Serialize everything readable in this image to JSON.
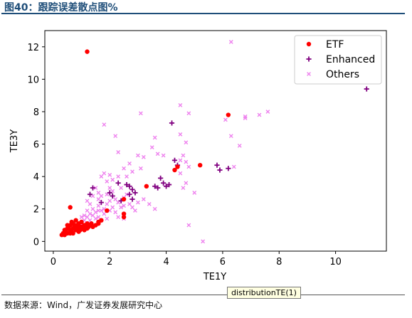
{
  "figure_title": "图40：跟踪误差散点图%",
  "source": "数据来源：Wind，广发证券发展研究中心",
  "tooltip": "distributionTE(1)",
  "colors": {
    "etf": "#ff0000",
    "enhanced": "#800080",
    "others": "#ee82ee",
    "title": "#1f4e79"
  },
  "chart_data": {
    "type": "scatter",
    "xlabel": "TE1Y",
    "ylabel": "TE3Y",
    "xlim": [
      -0.3,
      11.8
    ],
    "ylim": [
      -0.6,
      13.0
    ],
    "xticks": [
      0,
      2,
      4,
      6,
      8,
      10
    ],
    "yticks": [
      0,
      2,
      4,
      6,
      8,
      10,
      12
    ],
    "grid": false,
    "legend_position": "top-right",
    "series": [
      {
        "name": "ETF",
        "marker": "circle",
        "color": "#ff0000",
        "points": [
          [
            1.2,
            11.7
          ],
          [
            6.2,
            7.8
          ],
          [
            5.2,
            4.7
          ],
          [
            4.4,
            4.6
          ],
          [
            4.3,
            4.4
          ],
          [
            3.3,
            3.4
          ],
          [
            2.5,
            2.6
          ],
          [
            0.6,
            2.1
          ],
          [
            1.9,
            1.9
          ],
          [
            2.5,
            1.7
          ],
          [
            2.5,
            1.5
          ],
          [
            1.6,
            1.2
          ],
          [
            0.3,
            0.4
          ],
          [
            0.35,
            0.5
          ],
          [
            0.4,
            0.4
          ],
          [
            0.45,
            0.6
          ],
          [
            0.5,
            0.5
          ],
          [
            0.5,
            0.8
          ],
          [
            0.55,
            0.9
          ],
          [
            0.6,
            0.7
          ],
          [
            0.6,
            1.0
          ],
          [
            0.65,
            0.6
          ],
          [
            0.7,
            0.8
          ],
          [
            0.7,
            1.1
          ],
          [
            0.75,
            0.9
          ],
          [
            0.8,
            0.7
          ],
          [
            0.8,
            1.0
          ],
          [
            0.85,
            0.8
          ],
          [
            0.9,
            0.9
          ],
          [
            0.9,
            1.1
          ],
          [
            0.95,
            0.7
          ],
          [
            1.0,
            0.9
          ],
          [
            1.0,
            1.2
          ],
          [
            1.05,
            0.8
          ],
          [
            1.1,
            1.0
          ],
          [
            1.1,
            0.7
          ],
          [
            1.15,
            0.9
          ],
          [
            1.2,
            1.1
          ],
          [
            1.25,
            0.9
          ],
          [
            1.3,
            1.0
          ],
          [
            1.35,
            1.1
          ],
          [
            1.4,
            0.9
          ],
          [
            1.5,
            1.0
          ],
          [
            1.6,
            1.1
          ],
          [
            1.7,
            1.3
          ],
          [
            0.4,
            0.7
          ],
          [
            0.6,
            0.5
          ],
          [
            0.7,
            0.5
          ],
          [
            0.9,
            0.6
          ],
          [
            1.2,
            0.8
          ],
          [
            0.5,
            1.0
          ],
          [
            0.65,
            1.2
          ],
          [
            0.8,
            1.3
          ]
        ]
      },
      {
        "name": "Enhanced",
        "marker": "plus",
        "color": "#800080",
        "points": [
          [
            11.1,
            9.4
          ],
          [
            4.2,
            7.3
          ],
          [
            4.3,
            5.0
          ],
          [
            4.4,
            4.7
          ],
          [
            5.8,
            4.7
          ],
          [
            6.2,
            4.5
          ],
          [
            5.9,
            4.4
          ],
          [
            3.8,
            3.9
          ],
          [
            3.9,
            3.6
          ],
          [
            4.0,
            3.4
          ],
          [
            3.6,
            3.4
          ],
          [
            3.7,
            3.3
          ],
          [
            4.1,
            3.5
          ],
          [
            2.8,
            3.2
          ],
          [
            2.9,
            3.0
          ],
          [
            2.7,
            3.4
          ],
          [
            2.6,
            3.5
          ],
          [
            2.3,
            3.6
          ],
          [
            2.0,
            3.0
          ],
          [
            2.1,
            2.8
          ],
          [
            1.4,
            3.3
          ],
          [
            1.3,
            2.9
          ],
          [
            1.7,
            2.4
          ],
          [
            2.4,
            2.5
          ],
          [
            2.8,
            2.6
          ],
          [
            2.7,
            2.9
          ]
        ]
      },
      {
        "name": "Others",
        "marker": "x",
        "color": "#ee82ee",
        "points": [
          [
            6.3,
            12.3
          ],
          [
            7.6,
            8.0
          ],
          [
            7.3,
            7.8
          ],
          [
            6.8,
            7.6
          ],
          [
            6.8,
            7.7
          ],
          [
            3.1,
            7.9
          ],
          [
            4.5,
            8.4
          ],
          [
            4.8,
            7.9
          ],
          [
            4.5,
            6.6
          ],
          [
            4.7,
            6.1
          ],
          [
            4.5,
            5.0
          ],
          [
            4.6,
            5.3
          ],
          [
            4.7,
            4.9
          ],
          [
            4.8,
            4.6
          ],
          [
            4.5,
            4.2
          ],
          [
            4.7,
            3.6
          ],
          [
            4.6,
            3.3
          ],
          [
            5.0,
            3.0
          ],
          [
            3.6,
            6.4
          ],
          [
            3.5,
            5.8
          ],
          [
            3.9,
            5.3
          ],
          [
            3.2,
            5.2
          ],
          [
            3.7,
            5.4
          ],
          [
            3.0,
            5.3
          ],
          [
            2.7,
            4.8
          ],
          [
            2.5,
            4.5
          ],
          [
            2.3,
            4.0
          ],
          [
            2.8,
            4.3
          ],
          [
            3.1,
            4.5
          ],
          [
            2.6,
            4.0
          ],
          [
            2.0,
            4.1
          ],
          [
            1.7,
            4.0
          ],
          [
            1.8,
            4.2
          ],
          [
            1.9,
            3.7
          ],
          [
            2.1,
            3.8
          ],
          [
            1.5,
            3.3
          ],
          [
            1.6,
            3.0
          ],
          [
            1.4,
            2.8
          ],
          [
            1.2,
            2.5
          ],
          [
            1.3,
            2.3
          ],
          [
            1.7,
            2.8
          ],
          [
            1.9,
            2.9
          ],
          [
            2.0,
            2.5
          ],
          [
            2.2,
            2.6
          ],
          [
            2.3,
            2.4
          ],
          [
            2.5,
            2.7
          ],
          [
            2.6,
            2.9
          ],
          [
            2.7,
            2.3
          ],
          [
            2.4,
            2.1
          ],
          [
            2.1,
            2.1
          ],
          [
            1.8,
            2.0
          ],
          [
            1.5,
            1.8
          ],
          [
            1.6,
            2.2
          ],
          [
            1.4,
            2.0
          ],
          [
            1.3,
            1.7
          ],
          [
            1.2,
            1.5
          ],
          [
            1.1,
            1.3
          ],
          [
            1.0,
            1.2
          ],
          [
            1.2,
            1.9
          ],
          [
            1.4,
            1.6
          ],
          [
            1.6,
            1.5
          ],
          [
            1.8,
            1.7
          ],
          [
            2.0,
            1.9
          ],
          [
            2.2,
            1.8
          ],
          [
            1.9,
            1.4
          ],
          [
            1.7,
            1.3
          ],
          [
            1.5,
            1.4
          ],
          [
            1.3,
            1.3
          ],
          [
            1.1,
            1.6
          ],
          [
            1.0,
            1.5
          ],
          [
            2.3,
            1.5
          ],
          [
            2.5,
            1.4
          ],
          [
            2.8,
            2.1
          ],
          [
            3.0,
            2.4
          ],
          [
            3.2,
            2.6
          ],
          [
            3.4,
            2.3
          ],
          [
            2.9,
            1.9
          ],
          [
            3.6,
            2.0
          ],
          [
            6.3,
            6.5
          ],
          [
            6.6,
            5.9
          ],
          [
            6.4,
            4.6
          ],
          [
            1.8,
            7.2
          ],
          [
            2.2,
            6.5
          ],
          [
            2.3,
            5.5
          ],
          [
            4.8,
            1.0
          ],
          [
            5.3,
            0.0
          ],
          [
            6.1,
            7.5
          ],
          [
            2.0,
            3.3
          ],
          [
            1.6,
            2.6
          ],
          [
            1.9,
            2.3
          ],
          [
            2.1,
            3.1
          ],
          [
            2.4,
            3.3
          ],
          [
            2.5,
            2.2
          ],
          [
            1.7,
            1.9
          ],
          [
            1.6,
            1.9
          ],
          [
            1.2,
            1.1
          ],
          [
            0.9,
            1.0
          ],
          [
            1.0,
            1.1
          ]
        ]
      }
    ]
  }
}
